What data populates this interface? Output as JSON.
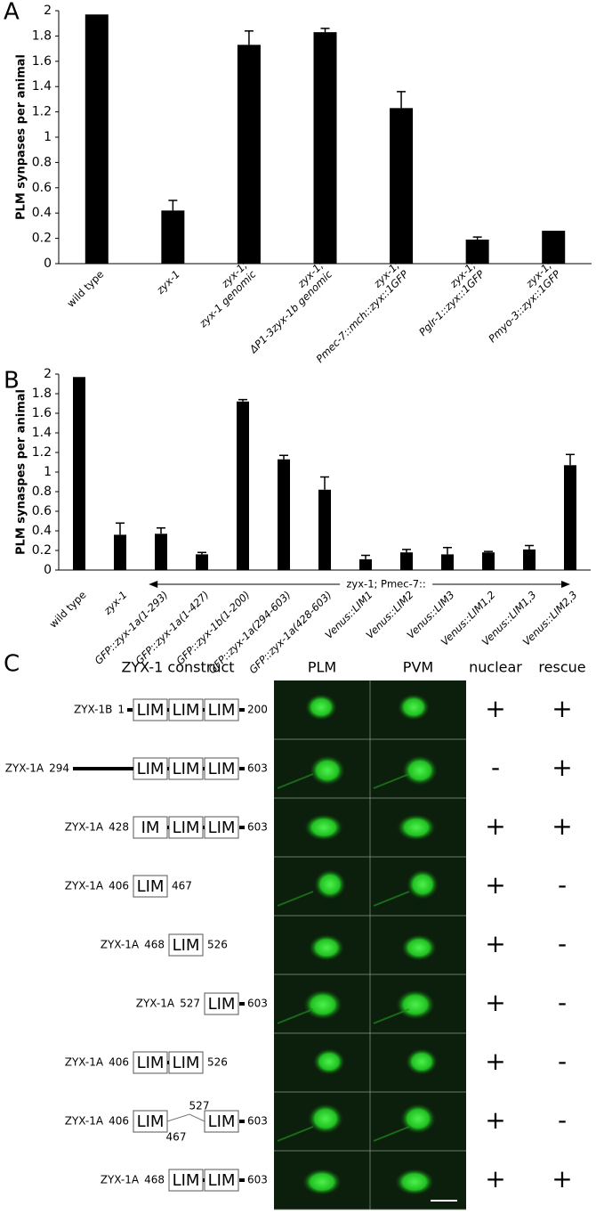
{
  "chart_data": [
    {
      "type": "bar",
      "panel": "A",
      "ylabel": "PLM synpases per animal",
      "categories": [
        [
          "wild type"
        ],
        [
          "zyx-1"
        ],
        [
          "zyx-1;",
          "zyx-1 genomic"
        ],
        [
          "zyx-1;",
          "ΔP1-3zyx-1b genomic"
        ],
        [
          "zyx-1;",
          "Pmec-7::mch::zyx::1GFP"
        ],
        [
          "zyx-1;",
          "Pglr-1::zyx::1GFP"
        ],
        [
          "zyx-1;",
          "Pmyo-3::zyx::1GFP"
        ]
      ],
      "values": [
        1.97,
        0.42,
        1.73,
        1.83,
        1.23,
        0.19,
        0.26
      ],
      "errors": [
        null,
        0.08,
        0.11,
        0.03,
        0.13,
        0.02,
        null
      ],
      "color": "#000000",
      "ylim": [
        0,
        2
      ],
      "yticks": [
        0,
        0.2,
        0.4,
        0.6,
        0.8,
        1,
        1.2,
        1.4,
        1.6,
        1.8,
        2
      ]
    },
    {
      "type": "bar",
      "panel": "B",
      "ylabel": "PLM synaspes per animal",
      "annotation": "zyx-1; Pmec-7::",
      "categories": [
        [
          "wild type"
        ],
        [
          "zyx-1"
        ],
        [
          "GFP::zyx-1a(1-293)"
        ],
        [
          "GFP::zyx-1a(1-427)"
        ],
        [
          "GFP::zyx-1b(1-200)"
        ],
        [
          "GFP::zyx-1a(294-603)"
        ],
        [
          "GFP::zyx-1a(428-603)"
        ],
        [
          "Venus::LIM1"
        ],
        [
          "Venus::LIM2"
        ],
        [
          "Venus::LIM3"
        ],
        [
          "Venus::LIM1,2"
        ],
        [
          "Venus::LIM1,3"
        ],
        [
          "Venus::LIM2,3"
        ]
      ],
      "values": [
        1.97,
        0.36,
        0.37,
        0.16,
        1.72,
        1.13,
        0.82,
        0.11,
        0.18,
        0.16,
        0.18,
        0.21,
        1.07
      ],
      "errors": [
        null,
        0.12,
        0.06,
        0.02,
        0.02,
        0.04,
        0.13,
        0.04,
        0.03,
        0.07,
        0.01,
        0.04,
        0.11
      ],
      "color": "#000000",
      "ylim": [
        0,
        2
      ],
      "yticks": [
        0,
        0.2,
        0.4,
        0.6,
        0.8,
        1,
        1.2,
        1.4,
        1.6,
        1.8,
        2
      ]
    }
  ],
  "panel_c": {
    "panel": "C",
    "headers": [
      "ZYX-1 construct",
      "PLM",
      "PVM",
      "nuclear",
      "rescue"
    ],
    "rows": [
      {
        "construct": "ZYX-1B",
        "start": "1",
        "end": "200",
        "domains": [
          "LIM",
          "LIM",
          "LIM"
        ],
        "nuclear": "+",
        "rescue": "+"
      },
      {
        "construct": "ZYX-1A",
        "start": "294",
        "end": "603",
        "domains": [
          "LIM",
          "LIM",
          "LIM"
        ],
        "nuclear": "-",
        "rescue": "+"
      },
      {
        "construct": "ZYX-1A",
        "start": "428",
        "end": "603",
        "domains": [
          "IM",
          "LIM",
          "LIM"
        ],
        "nuclear": "+",
        "rescue": "+"
      },
      {
        "construct": "ZYX-1A",
        "start": "406",
        "end": "467",
        "domains": [
          "LIM"
        ],
        "nuclear": "+",
        "rescue": "-"
      },
      {
        "construct": "ZYX-1A",
        "start": "468",
        "end": "526",
        "domains": [
          "LIM"
        ],
        "nuclear": "+",
        "rescue": "-"
      },
      {
        "construct": "ZYX-1A",
        "start": "527",
        "end": "603",
        "domains": [
          "LIM"
        ],
        "nuclear": "+",
        "rescue": "-"
      },
      {
        "construct": "ZYX-1A",
        "start": "406",
        "end": "526",
        "domains": [
          "LIM",
          "LIM"
        ],
        "nuclear": "+",
        "rescue": "-"
      },
      {
        "construct": "ZYX-1A",
        "start": "406",
        "end": "603",
        "domains": [
          "LIM",
          "LIM"
        ],
        "junction": [
          "527",
          "467"
        ],
        "nuclear": "+",
        "rescue": "-"
      },
      {
        "construct": "ZYX-1A",
        "start": "468",
        "end": "603",
        "domains": [
          "LIM",
          "LIM"
        ],
        "nuclear": "+",
        "rescue": "+"
      }
    ]
  }
}
